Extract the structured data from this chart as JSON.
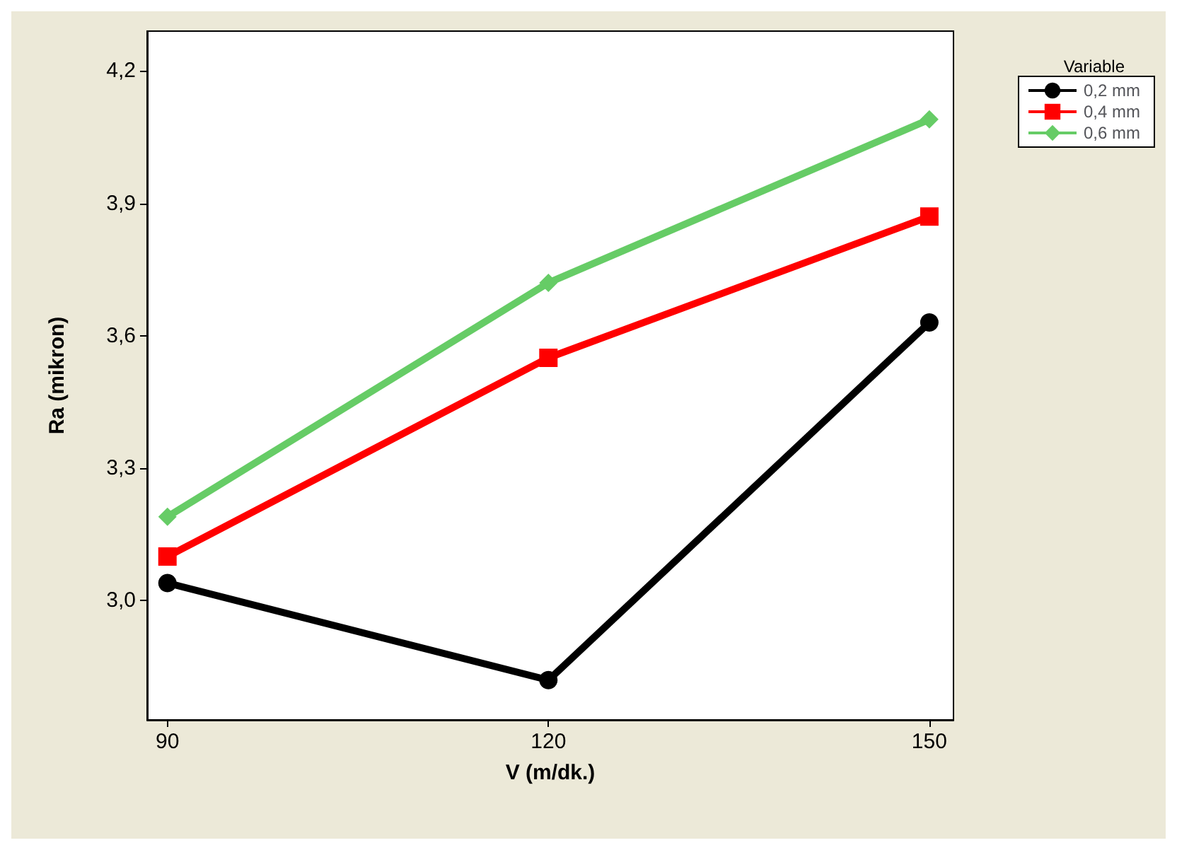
{
  "chart_data": {
    "type": "line",
    "xlabel": "V (m/dk.)",
    "ylabel": "Ra (mikron)",
    "legend_title": "Variable",
    "legend": "top right",
    "x": [
      90,
      120,
      150
    ],
    "xlim": [
      88.4,
      151.9
    ],
    "xticks": [
      90,
      120,
      150
    ],
    "ylim": [
      2.73,
      4.29
    ],
    "yticks": [
      {
        "value": 3.0,
        "label": "3,0"
      },
      {
        "value": 3.3,
        "label": "3,3"
      },
      {
        "value": 3.6,
        "label": "3,6"
      },
      {
        "value": 3.9,
        "label": "3,9"
      },
      {
        "value": 4.2,
        "label": "4,2"
      }
    ],
    "grid": false,
    "line_style": "solid",
    "series": [
      {
        "name": "0,2 mm",
        "color": "#000000",
        "marker": "circle",
        "values": [
          3.04,
          2.82,
          3.63
        ]
      },
      {
        "name": "0,4 mm",
        "color": "#ff0000",
        "marker": "square",
        "values": [
          3.1,
          3.55,
          3.87
        ]
      },
      {
        "name": "0,6 mm",
        "color": "#66cc66",
        "marker": "diamond",
        "values": [
          3.19,
          3.72,
          4.09
        ]
      }
    ]
  }
}
